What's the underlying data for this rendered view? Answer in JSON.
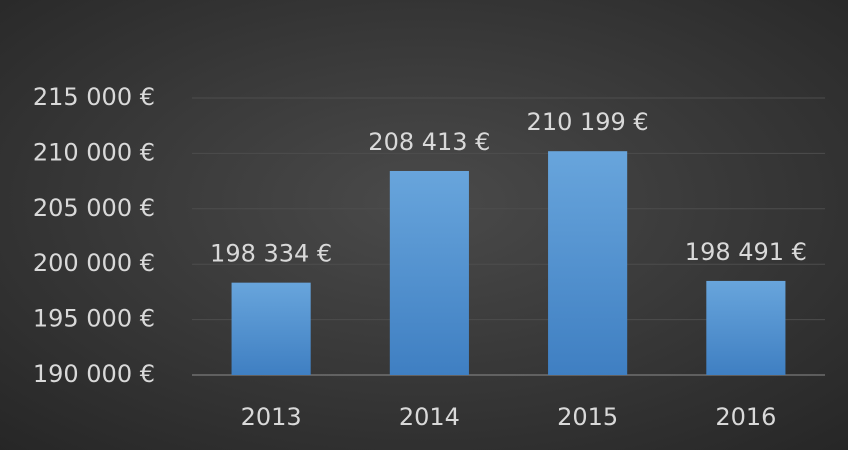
{
  "chart_data": {
    "type": "bar",
    "categories": [
      "2013",
      "2014",
      "2015",
      "2016"
    ],
    "values": [
      198334,
      208413,
      210199,
      198491
    ],
    "value_labels": [
      "198 334 €",
      "208 413 €",
      "210 199 €",
      "198 491 €"
    ],
    "color": "#5b9bd5",
    "ylim": [
      190000,
      215000
    ],
    "yticks": [
      {
        "value": 190000,
        "label": "190 000 €"
      },
      {
        "value": 195000,
        "label": "195 000 €"
      },
      {
        "value": 200000,
        "label": "200 000 €"
      },
      {
        "value": 205000,
        "label": "205 000 €"
      },
      {
        "value": 210000,
        "label": "210 000 €"
      },
      {
        "value": 215000,
        "label": "215 000 €"
      }
    ],
    "grid": true
  }
}
